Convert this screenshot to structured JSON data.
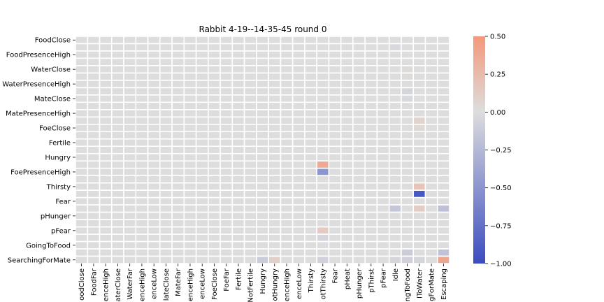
{
  "chart_data": {
    "type": "heatmap",
    "title": "Rabbit 4-19--14-35-45 round 0",
    "y_tick_labels": [
      "FoodClose",
      "FoodPresenceHigh",
      "WaterClose",
      "WaterPresenceHigh",
      "MateClose",
      "MatePresenceHigh",
      "FoeClose",
      "Fertile",
      "Hungry",
      "FoePresenceHigh",
      "Thirsty",
      "Fear",
      "pHunger",
      "pFear",
      "GoingToFood",
      "SearchingForMate"
    ],
    "x_tick_labels": [
      "oodClose",
      "FoodFar",
      "enceHigh",
      "aterClose",
      "WaterFar",
      "enceHigh",
      "enceLow",
      "lateClose",
      "MateFar",
      "enceHigh",
      "enceLow",
      "FoeClose",
      "FoeFar",
      "Fertile",
      "NotFertile",
      "Hungry",
      "otHungry",
      "enceHigh",
      "enceLow",
      "Thirsty",
      "otThirsty",
      "Fear",
      "pHeat",
      "pHunger",
      "pThirst",
      "pFear",
      "Idle",
      "ngToFood",
      "IToWater",
      "gForMate",
      "Escaping"
    ],
    "n_rows": 32,
    "n_cols": 32,
    "vmin": -1.0,
    "vmax": 0.5,
    "colorbar_ticks": [
      "0.50",
      "0.25",
      "0.00",
      "−0.25",
      "−0.50",
      "−0.75",
      "−1.00"
    ],
    "colormap": [
      "#3b4cc0",
      "#dddddd",
      "#f4987a"
    ],
    "cells": [
      {
        "row": 2,
        "col": 28,
        "value": -0.03
      },
      {
        "row": 6,
        "col": 29,
        "value": 0.02
      },
      {
        "row": 8,
        "col": 29,
        "value": 0.02
      },
      {
        "row": 10,
        "col": 29,
        "value": -0.05
      },
      {
        "row": 12,
        "col": 29,
        "value": -0.03
      },
      {
        "row": 16,
        "col": 30,
        "value": 0.08
      },
      {
        "row": 18,
        "col": 30,
        "value": 0.03
      },
      {
        "row": 24,
        "col": 22,
        "value": 0.38
      },
      {
        "row": 25,
        "col": 22,
        "value": -0.5
      },
      {
        "row": 28,
        "col": 30,
        "value": 0.18
      },
      {
        "row": 30,
        "col": 30,
        "value": -0.92
      },
      {
        "row": 32,
        "col": 28,
        "value": 0.25
      },
      {
        "row": 32,
        "col": 30,
        "value": -0.1
      },
      {
        "row": 32,
        "col": 32,
        "value": -0.2
      },
      {
        "row": 33,
        "col": 28,
        "value": -0.15
      },
      {
        "row": 33,
        "col": 30,
        "value": 0.12
      },
      {
        "row": 36,
        "col": 22,
        "value": 0.13
      },
      {
        "row": 38,
        "col": 22,
        "value": -0.05
      },
      {
        "row": 40,
        "col": 29,
        "value": 0.28
      },
      {
        "row": 40,
        "col": 32,
        "value": -0.18
      },
      {
        "row": 41,
        "col": 29,
        "value": -0.12
      },
      {
        "row": 42,
        "col": 17,
        "value": -0.12
      },
      {
        "row": 42,
        "col": 18,
        "value": 0.1
      },
      {
        "row": 42,
        "col": 22,
        "value": -0.08
      },
      {
        "row": 42,
        "col": 28,
        "value": -0.05
      },
      {
        "row": 42,
        "col": 29,
        "value": -0.08
      },
      {
        "row": 42,
        "col": 30,
        "value": -0.05
      },
      {
        "row": 42,
        "col": 32,
        "value": 0.4
      }
    ]
  }
}
